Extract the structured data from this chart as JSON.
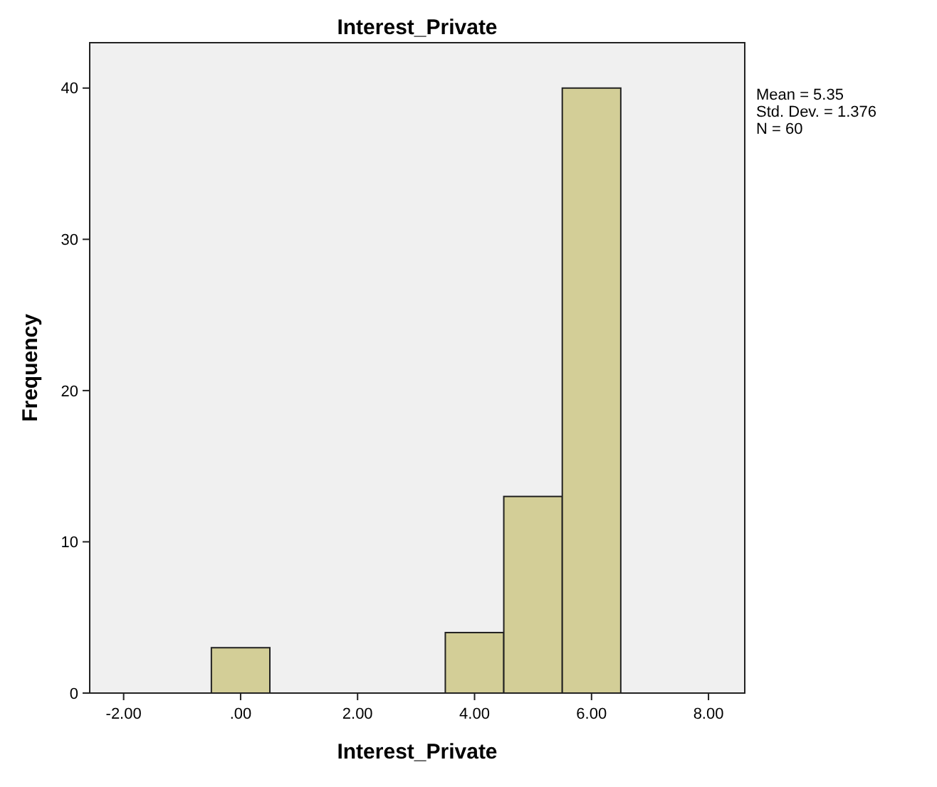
{
  "chart_data": {
    "type": "histogram",
    "title": "Interest_Private",
    "xlabel": "Interest_Private",
    "ylabel": "Frequency",
    "bins": [
      -0.5,
      0.5,
      1.5,
      2.5,
      3.5,
      4.5,
      5.5,
      6.5
    ],
    "values": [
      3,
      0,
      0,
      0,
      4,
      13,
      40
    ],
    "color": "#d3ce97",
    "xlim": [
      -2.58,
      8.62
    ],
    "xticks": [
      {
        "value": -2,
        "label": "-2.00"
      },
      {
        "value": 0,
        "label": ".00"
      },
      {
        "value": 2,
        "label": "2.00"
      },
      {
        "value": 4,
        "label": "4.00"
      },
      {
        "value": 6,
        "label": "6.00"
      },
      {
        "value": 8,
        "label": "8.00"
      }
    ],
    "ylim": [
      0,
      43
    ],
    "yticks": [
      0,
      10,
      20,
      30,
      40
    ],
    "grid": false,
    "annotations": [
      "Mean = 5.35",
      "Std. Dev. = 1.376",
      "N = 60"
    ]
  }
}
